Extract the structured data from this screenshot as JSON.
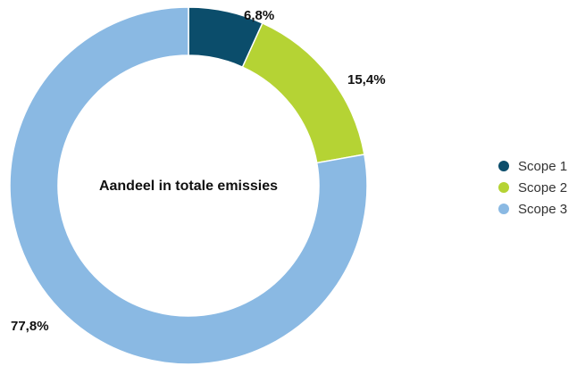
{
  "chart_data": {
    "type": "pie",
    "donut": true,
    "center_title": "Aandeel in totale emissies",
    "slices": [
      {
        "name": "Scope 1",
        "value": 6.8,
        "label": "6,8%",
        "color": "#0b4d6b"
      },
      {
        "name": "Scope 2",
        "value": 15.4,
        "label": "15,4%",
        "color": "#b5d334"
      },
      {
        "name": "Scope 3",
        "value": 77.8,
        "label": "77,8%",
        "color": "#8ab9e3"
      }
    ],
    "legend_position": "right"
  }
}
